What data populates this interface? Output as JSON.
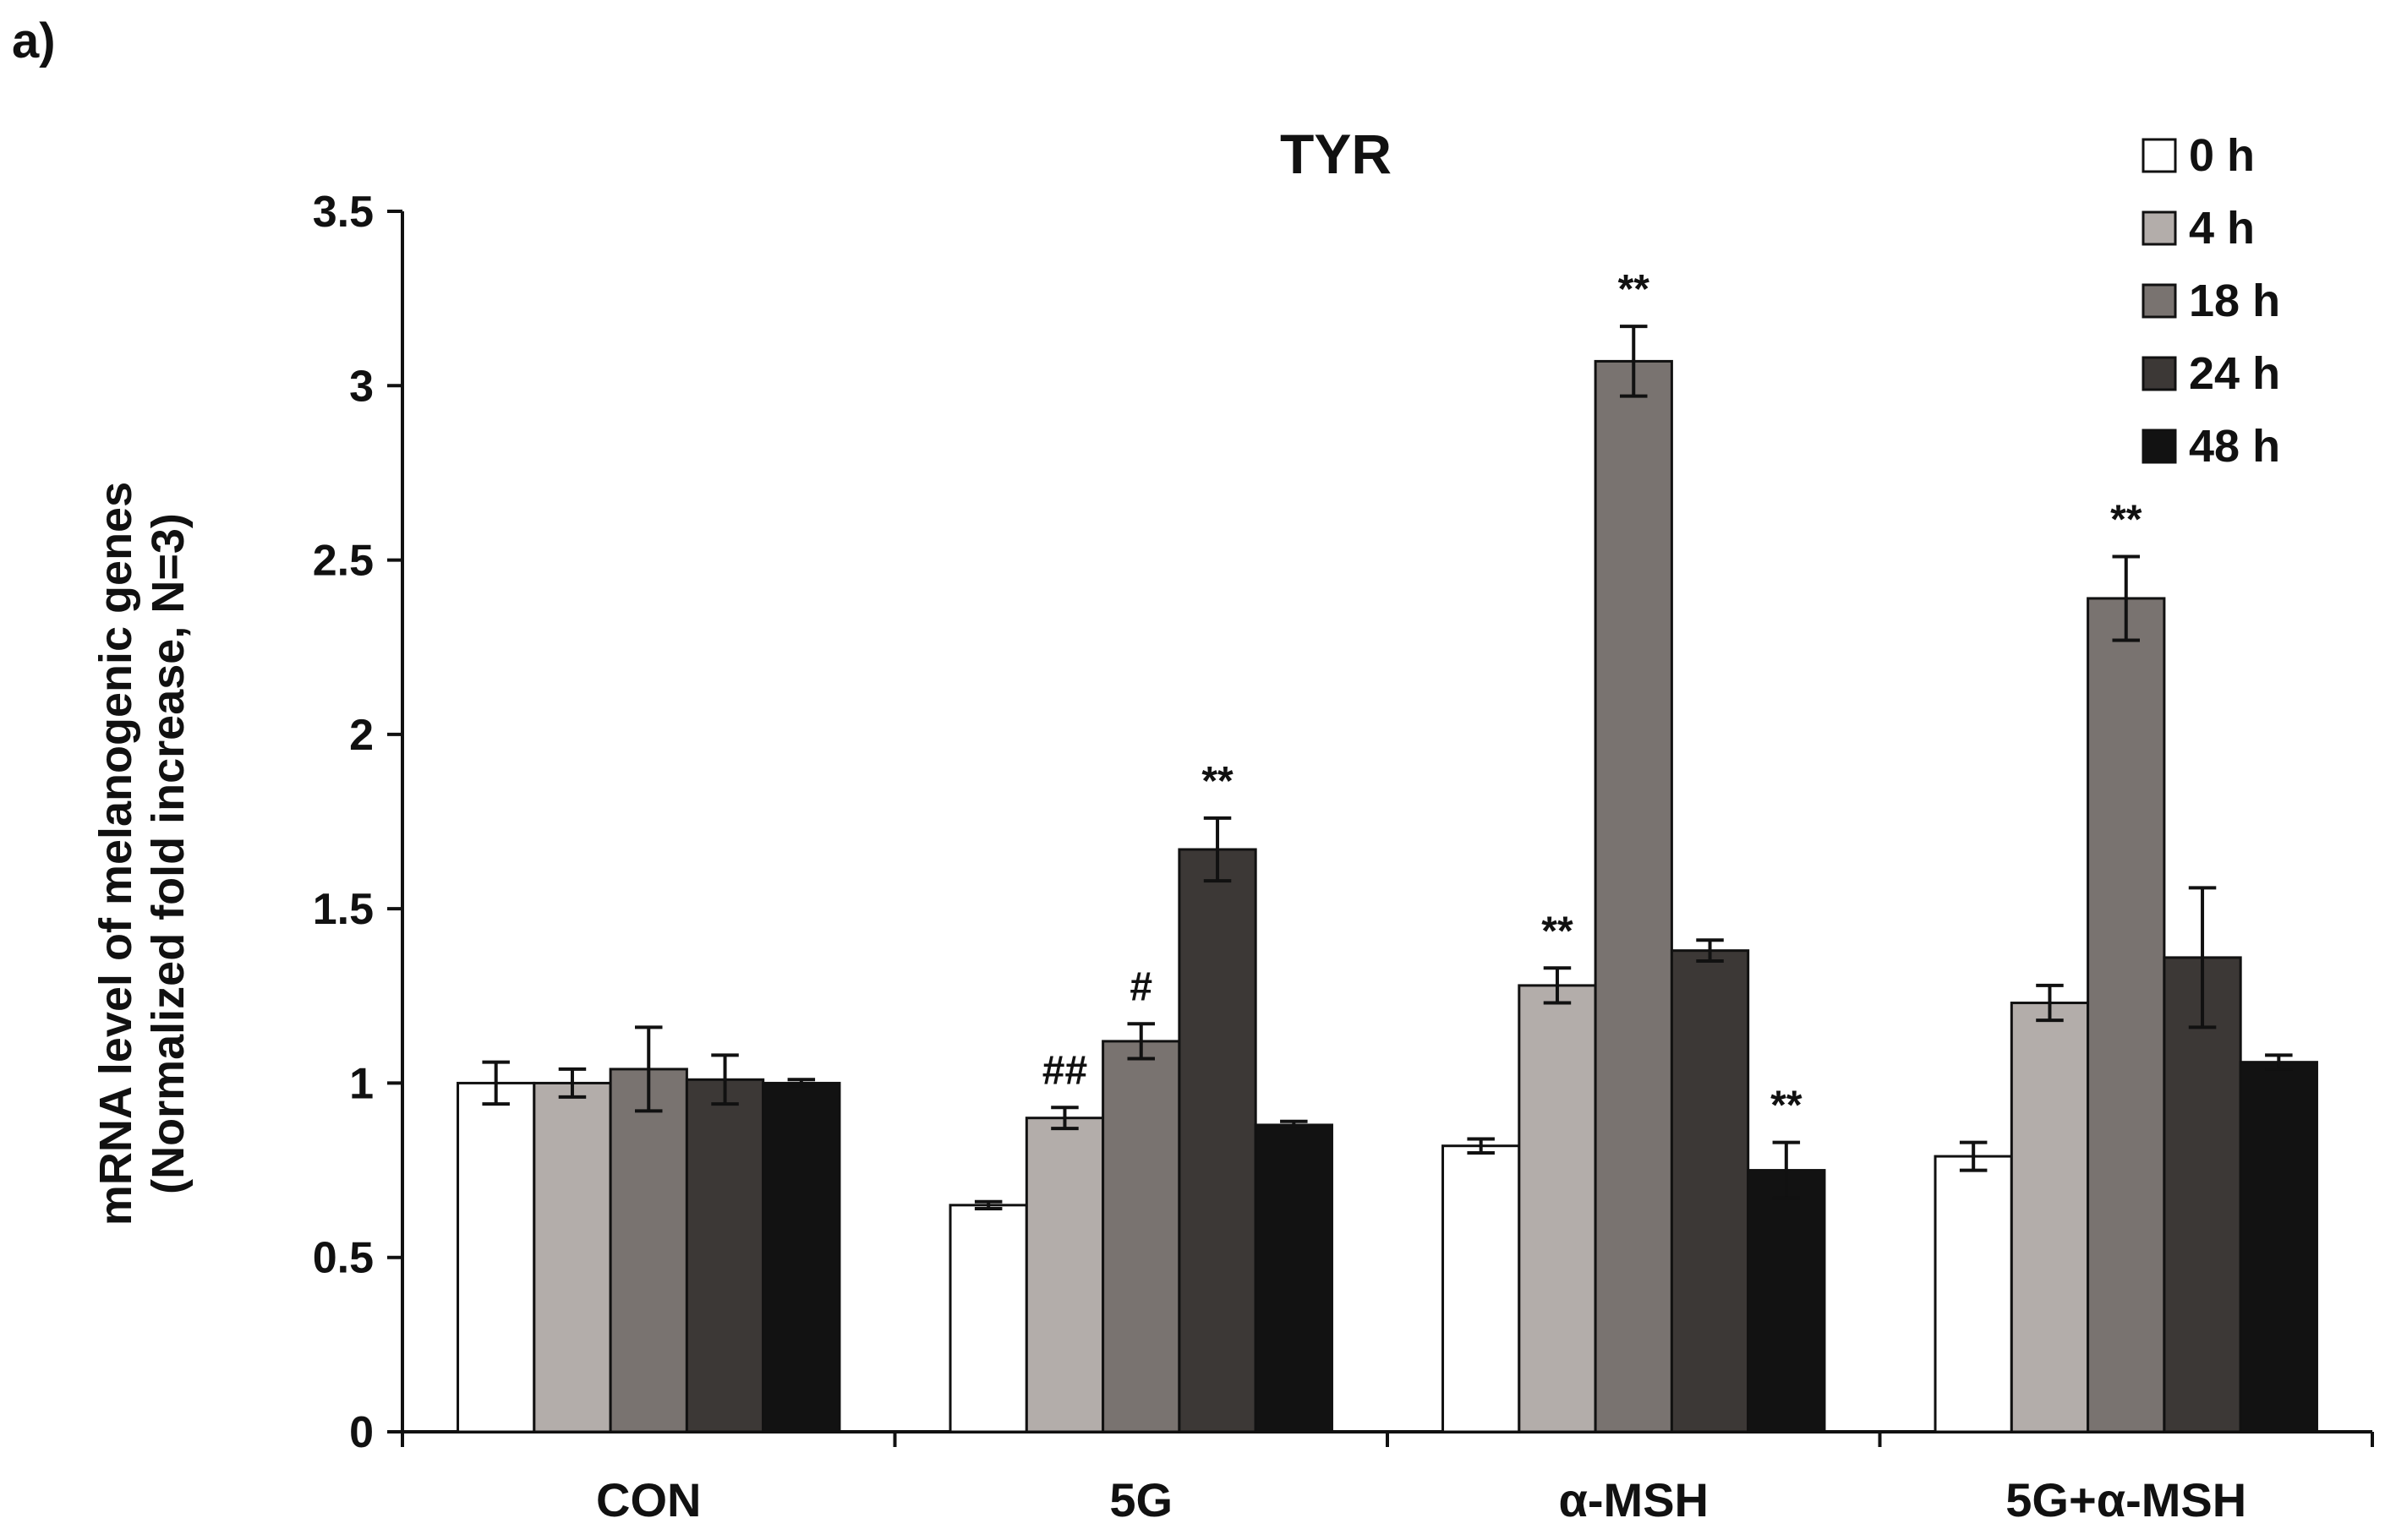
{
  "panel_label": "a)",
  "chart_data": {
    "type": "bar",
    "title": "TYR",
    "ylabel_line1": "mRNA level of melanogenic  genes",
    "ylabel_line2": "(Normalized  fold increase,  N=3)",
    "xlabel": "",
    "ylim": [
      0,
      3.5
    ],
    "yticks": [
      0,
      0.5,
      1,
      1.5,
      2,
      2.5,
      3,
      3.5
    ],
    "ytick_labels": [
      "0",
      "0.5",
      "1",
      "1.5",
      "2",
      "2.5",
      "3",
      "3.5"
    ],
    "grid": false,
    "legend_position": "top-right",
    "categories": [
      "CON",
      "5G",
      "α-MSH",
      "5G+α-MSH"
    ],
    "series": [
      {
        "name": "0 h",
        "color": "#ffffff",
        "values": [
          1.0,
          0.65,
          0.82,
          0.79
        ],
        "errors": [
          0.06,
          0.01,
          0.02,
          0.04
        ],
        "annotations": [
          "",
          "",
          "",
          ""
        ]
      },
      {
        "name": "4 h",
        "color": "#b3adaa",
        "values": [
          1.0,
          0.9,
          1.28,
          1.23
        ],
        "errors": [
          0.04,
          0.03,
          0.05,
          0.05
        ],
        "annotations": [
          "",
          "##",
          "**",
          ""
        ]
      },
      {
        "name": "18 h",
        "color": "#797370",
        "values": [
          1.04,
          1.12,
          3.07,
          2.39
        ],
        "errors": [
          0.12,
          0.05,
          0.1,
          0.12
        ],
        "annotations": [
          "",
          "#",
          "**",
          "**"
        ]
      },
      {
        "name": "24 h",
        "color": "#3c3836",
        "values": [
          1.01,
          1.67,
          1.38,
          1.36
        ],
        "errors": [
          0.07,
          0.09,
          0.03,
          0.2
        ],
        "annotations": [
          "",
          "**",
          "",
          ""
        ]
      },
      {
        "name": "48 h",
        "color": "#121212",
        "values": [
          1.0,
          0.88,
          0.75,
          1.06
        ],
        "errors": [
          0.01,
          0.01,
          0.08,
          0.02
        ],
        "annotations": [
          "",
          "",
          "**",
          ""
        ]
      }
    ]
  }
}
